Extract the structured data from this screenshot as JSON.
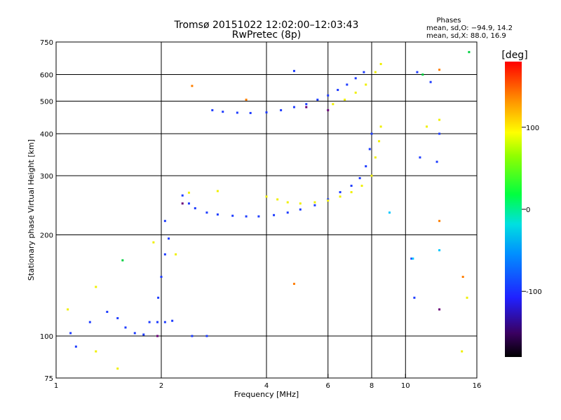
{
  "chart_data": {
    "type": "scatter",
    "title": "Tromsø 20151022 12:02:00–12:03:43",
    "subtitle": "RwPretec (8p)",
    "xlabel": "Frequency [MHz]",
    "ylabel": "Stationary phase Virtual Height [km]",
    "x_scale": "log",
    "y_scale": "log",
    "xlim": [
      1,
      16
    ],
    "ylim": [
      75,
      750
    ],
    "x_ticks": [
      1,
      2,
      4,
      6,
      8,
      10,
      16
    ],
    "x_tick_labels": [
      "1",
      "2",
      "4",
      "6",
      "8",
      "10",
      "16"
    ],
    "y_ticks": [
      75,
      100,
      200,
      300,
      400,
      500,
      600,
      750
    ],
    "y_tick_labels": [
      "75",
      "100",
      "200",
      "300",
      "400",
      "500",
      "600",
      "750"
    ],
    "x_grid": [
      2,
      4,
      6,
      8,
      10
    ],
    "y_grid": [
      100,
      200,
      300,
      400,
      500,
      600
    ],
    "phase_info": {
      "heading": "Phases",
      "line_o": "mean, sd,O: −94.9, 14.2",
      "line_x": "mean, sd,X:  88.0, 16.9"
    },
    "colorbar": {
      "label": "[deg]",
      "range": [
        -180,
        180
      ],
      "ticks": [
        100,
        0,
        -100
      ],
      "tick_labels": [
        "100",
        "0",
        "-100"
      ]
    },
    "series": [
      {
        "phase": -95,
        "color": "#1e3cff",
        "points": [
          [
            1.1,
            102
          ],
          [
            1.14,
            93
          ],
          [
            1.25,
            110
          ],
          [
            1.4,
            118
          ],
          [
            1.5,
            113
          ],
          [
            1.58,
            106
          ],
          [
            1.68,
            102
          ],
          [
            1.78,
            101
          ],
          [
            1.85,
            110
          ],
          [
            1.95,
            110
          ],
          [
            2.05,
            110
          ],
          [
            2.15,
            111
          ],
          [
            1.96,
            130
          ],
          [
            2.0,
            150
          ],
          [
            2.05,
            175
          ],
          [
            2.1,
            195
          ],
          [
            2.05,
            220
          ],
          [
            2.45,
            100
          ],
          [
            2.7,
            100
          ],
          [
            2.3,
            262
          ],
          [
            2.4,
            248
          ],
          [
            2.5,
            240
          ],
          [
            2.7,
            233
          ],
          [
            2.9,
            230
          ],
          [
            3.2,
            228
          ],
          [
            3.5,
            227
          ],
          [
            3.8,
            227
          ],
          [
            4.2,
            229
          ],
          [
            4.6,
            233
          ],
          [
            5.0,
            238
          ],
          [
            5.5,
            245
          ],
          [
            6.0,
            255
          ],
          [
            6.5,
            268
          ],
          [
            7.0,
            280
          ],
          [
            7.4,
            295
          ],
          [
            7.7,
            320
          ],
          [
            7.9,
            360
          ],
          [
            8.0,
            400
          ],
          [
            2.8,
            470
          ],
          [
            3.0,
            465
          ],
          [
            3.3,
            462
          ],
          [
            3.6,
            461
          ],
          [
            4.0,
            463
          ],
          [
            4.4,
            470
          ],
          [
            4.8,
            480
          ],
          [
            5.2,
            490
          ],
          [
            5.6,
            505
          ],
          [
            6.0,
            520
          ],
          [
            6.4,
            540
          ],
          [
            6.8,
            560
          ],
          [
            7.2,
            585
          ],
          [
            7.6,
            610
          ],
          [
            4.8,
            615
          ],
          [
            10.4,
            170
          ],
          [
            10.6,
            130
          ],
          [
            10.8,
            610
          ],
          [
            11.8,
            570
          ],
          [
            12.5,
            400
          ],
          [
            12.3,
            330
          ],
          [
            11.0,
            340
          ]
        ]
      },
      {
        "phase": 100,
        "color": "#f0f000",
        "points": [
          [
            4.0,
            260
          ],
          [
            4.3,
            255
          ],
          [
            4.6,
            250
          ],
          [
            5.0,
            248
          ],
          [
            5.5,
            250
          ],
          [
            6.0,
            253
          ],
          [
            6.5,
            260
          ],
          [
            7.0,
            268
          ],
          [
            7.5,
            280
          ],
          [
            8.0,
            300
          ],
          [
            8.2,
            340
          ],
          [
            8.4,
            380
          ],
          [
            8.5,
            420
          ],
          [
            6.2,
            490
          ],
          [
            6.7,
            505
          ],
          [
            7.2,
            530
          ],
          [
            7.7,
            560
          ],
          [
            8.2,
            610
          ],
          [
            8.5,
            645
          ],
          [
            1.3,
            90
          ],
          [
            1.5,
            80
          ],
          [
            1.9,
            190
          ],
          [
            2.2,
            175
          ],
          [
            1.08,
            120
          ],
          [
            1.3,
            140
          ],
          [
            2.4,
            267
          ],
          [
            2.9,
            270
          ],
          [
            11.5,
            420
          ],
          [
            12.5,
            440
          ],
          [
            14.5,
            90
          ],
          [
            15.0,
            130
          ]
        ]
      },
      {
        "phase": 150,
        "color": "#ff7f00",
        "points": [
          [
            2.45,
            555
          ],
          [
            4.8,
            143
          ],
          [
            12.5,
            620
          ],
          [
            12.5,
            220
          ],
          [
            14.6,
            150
          ],
          [
            3.5,
            505
          ]
        ]
      },
      {
        "phase": -150,
        "color": "#6a0078",
        "points": [
          [
            2.3,
            248
          ],
          [
            5.2,
            480
          ],
          [
            6.0,
            470
          ],
          [
            12.5,
            120
          ],
          [
            1.95,
            100
          ]
        ]
      },
      {
        "phase": 20,
        "color": "#00d040",
        "points": [
          [
            15.2,
            700
          ],
          [
            1.55,
            168
          ],
          [
            11.2,
            600
          ]
        ]
      },
      {
        "phase": -30,
        "color": "#00c8ff",
        "points": [
          [
            9.0,
            233
          ],
          [
            10.5,
            170
          ],
          [
            12.5,
            180
          ]
        ]
      }
    ]
  }
}
